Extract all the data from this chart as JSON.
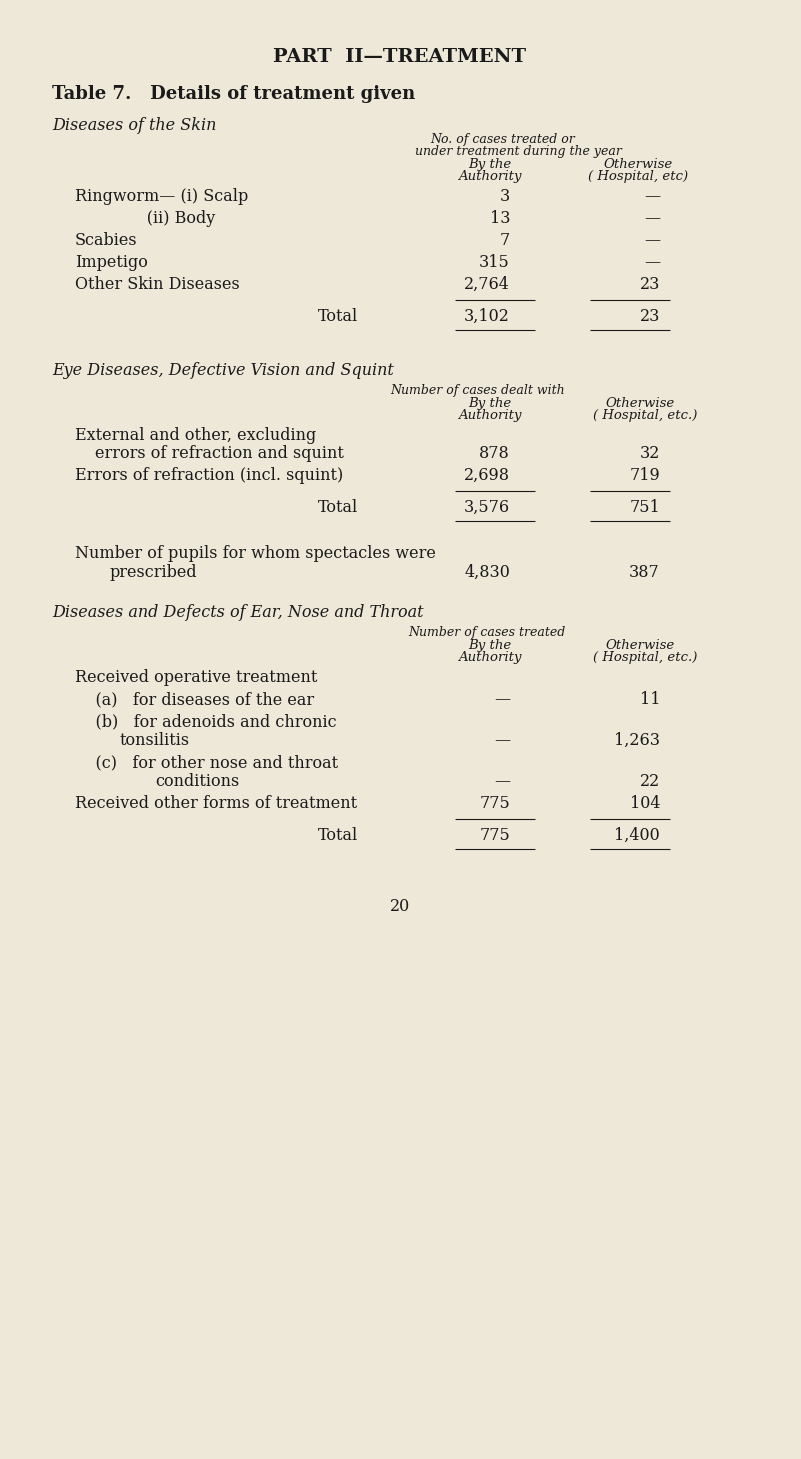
{
  "bg_color": "#ede8d8",
  "text_color": "#1a1a1a",
  "page_title": "PART  II—TREATMENT",
  "table_title": "Table 7.   Details of treatment given",
  "section1_title": "Diseases of the Skin",
  "section1_col_header1": "No. of cases treated or",
  "section1_col_header2": "under treatment during the year",
  "section1_col_header3": "By the",
  "section1_col_header4": "Otherwise",
  "section1_col_header5": "Authority",
  "section1_col_header6": "( Hospital, etc)",
  "section1_rows": [
    {
      "label": "Ringworm— (i) Scalp",
      "col1": "3",
      "col2": "—"
    },
    {
      "label": "              (ii) Body",
      "col1": "13",
      "col2": "—"
    },
    {
      "label": "Scabies",
      "col1": "7",
      "col2": "—"
    },
    {
      "label": "Impetigo",
      "col1": "315",
      "col2": "—"
    },
    {
      "label": "Other Skin Diseases",
      "col1": "2,764",
      "col2": "23"
    }
  ],
  "section1_total_label": "Total",
  "section1_total_col1": "3,102",
  "section1_total_col2": "23",
  "section2_title": "Eye Diseases, Defective Vision and Squint",
  "section2_col_header1": "Number of cases dealt with",
  "section2_col_header2": "By the",
  "section2_col_header3": "Otherwise",
  "section2_col_header4": "Authority",
  "section2_col_header5": "( Hospital, etc.)",
  "section2_rows": [
    {
      "label1": "External and other, excluding",
      "label2": "    errors of refraction and squint",
      "col1": "878",
      "col2": "32"
    },
    {
      "label1": "Errors of refraction (incl. squint)",
      "label2": "",
      "col1": "2,698",
      "col2": "719"
    }
  ],
  "section2_total_label": "Total",
  "section2_total_col1": "3,576",
  "section2_total_col2": "751",
  "section2_spectacles_label1": "Number of pupils for whom spectacles were",
  "section2_spectacles_label2": "    prescribed",
  "section2_spectacles_col1": "4,830",
  "section2_spectacles_col2": "387",
  "section3_title": "Diseases and Defects of Ear, Nose and Throat",
  "section3_col_header1": "Number of cases treated",
  "section3_col_header2": "By the",
  "section3_col_header3": "Otherwise",
  "section3_col_header4": "Authority",
  "section3_col_header5": "( Hospital, etc.)",
  "section3_op_label": "Received operative treatment",
  "section3_rows": [
    {
      "label1": "    (a)   for diseases of the ear",
      "label2": "",
      "col1": "—",
      "col2": "11"
    },
    {
      "label1": "    (b)   for adenoids and chronic",
      "label2": "              tonsilitis",
      "col1": "—",
      "col2": "1,263"
    },
    {
      "label1": "    (c)   for other nose and throat",
      "label2": "              conditions",
      "col1": "—",
      "col2": "22"
    },
    {
      "label1": "Received other forms of treatment",
      "label2": "",
      "col1": "775",
      "col2": "104"
    }
  ],
  "section3_total_label": "Total",
  "section3_total_col1": "775",
  "section3_total_col2": "1,400",
  "page_number": "20"
}
